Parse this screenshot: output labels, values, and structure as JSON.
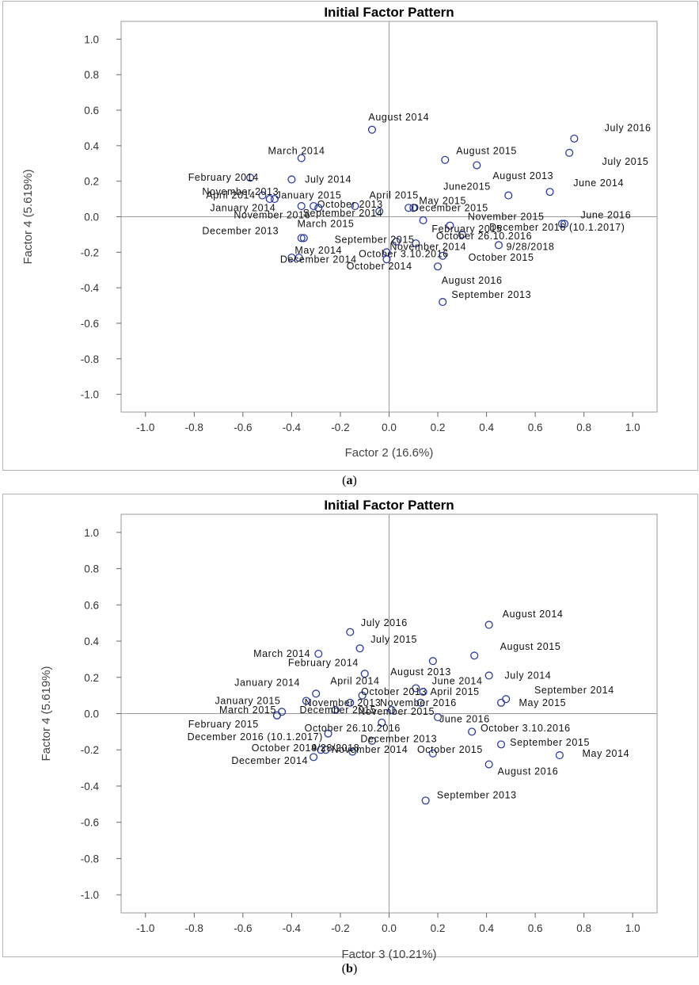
{
  "captions": [
    {
      "open": "(",
      "letter": "a",
      "close": ")"
    },
    {
      "open": "(",
      "letter": "b",
      "close": ")"
    }
  ],
  "chart_data": [
    {
      "type": "scatter",
      "title": "Initial Factor Pattern",
      "xlabel": "Factor 2 (16.6%)",
      "ylabel": "Factor 4 (5.619%)",
      "xlim": [
        -1.1,
        1.1
      ],
      "ylim": [
        -1.1,
        1.1
      ],
      "xticks": [
        "-1.0",
        "-0.8",
        "-0.6",
        "-0.4",
        "-0.2",
        "0.0",
        "0.2",
        "0.4",
        "0.6",
        "0.8",
        "1.0"
      ],
      "yticks": [
        "1.0",
        "0.8",
        "0.6",
        "0.4",
        "0.2",
        "0.0",
        "-0.2",
        "-0.4",
        "-0.6",
        "-0.8",
        "-1.0"
      ],
      "marker_color": "#2b3d9e",
      "points": [
        {
          "label": "August 2014",
          "x": -0.07,
          "y": 0.49,
          "lx": 0.04,
          "ly": 0.56
        },
        {
          "label": "July 2016",
          "x": 0.76,
          "y": 0.44,
          "lx": 0.98,
          "ly": 0.5
        },
        {
          "label": "March 2014",
          "x": -0.36,
          "y": 0.33,
          "lx": -0.38,
          "ly": 0.37
        },
        {
          "label": "August 2015",
          "x": 0.23,
          "y": 0.32,
          "lx": 0.4,
          "ly": 0.37
        },
        {
          "label": "July 2015",
          "x": 0.74,
          "y": 0.36,
          "lx": 0.97,
          "ly": 0.31
        },
        {
          "label": "August 2013",
          "x": 0.36,
          "y": 0.29,
          "lx": 0.55,
          "ly": 0.23
        },
        {
          "label": "February 2014",
          "x": -0.57,
          "y": 0.22,
          "lx": -0.68,
          "ly": 0.22
        },
        {
          "label": "July 2014",
          "x": -0.4,
          "y": 0.21,
          "lx": -0.25,
          "ly": 0.21
        },
        {
          "label": "June 2014",
          "x": 0.66,
          "y": 0.14,
          "lx": 0.86,
          "ly": 0.19
        },
        {
          "label": "June2015",
          "x": 0.49,
          "y": 0.12,
          "lx": 0.32,
          "ly": 0.17
        },
        {
          "label": "November 2013",
          "x": -0.52,
          "y": 0.12,
          "lx": -0.61,
          "ly": 0.14
        },
        {
          "label": "April 2014",
          "x": -0.49,
          "y": 0.1,
          "lx": -0.65,
          "ly": 0.12
        },
        {
          "label": "January 2015",
          "x": -0.47,
          "y": 0.1,
          "lx": -0.33,
          "ly": 0.12
        },
        {
          "label": "April 2015",
          "x": -0.14,
          "y": 0.06,
          "lx": 0.02,
          "ly": 0.12
        },
        {
          "label": "May 2015",
          "x": 0.1,
          "y": 0.05,
          "lx": 0.22,
          "ly": 0.09
        },
        {
          "label": "January 2014",
          "x": -0.36,
          "y": 0.06,
          "lx": -0.6,
          "ly": 0.05
        },
        {
          "label": "October 2013",
          "x": -0.31,
          "y": 0.06,
          "lx": -0.16,
          "ly": 0.07
        },
        {
          "label": "December 2015",
          "x": 0.08,
          "y": 0.05,
          "lx": 0.25,
          "ly": 0.05
        },
        {
          "label": "November 2016",
          "x": -0.29,
          "y": 0.05,
          "lx": -0.48,
          "ly": 0.01
        },
        {
          "label": "September 2014",
          "x": -0.04,
          "y": 0.03,
          "lx": -0.19,
          "ly": 0.02
        },
        {
          "label": "November 2015",
          "x": 0.14,
          "y": -0.02,
          "lx": 0.48,
          "ly": 0.0
        },
        {
          "label": "June 2016",
          "x": 0.71,
          "y": -0.04,
          "lx": 0.89,
          "ly": 0.01
        },
        {
          "label": "March 2015",
          "x": -0.36,
          "y": -0.12,
          "lx": -0.26,
          "ly": -0.04
        },
        {
          "label": "December 2013",
          "x": -0.35,
          "y": -0.12,
          "lx": -0.61,
          "ly": -0.08
        },
        {
          "label": "February 2015",
          "x": 0.25,
          "y": -0.05,
          "lx": 0.32,
          "ly": -0.07
        },
        {
          "label": "December 2016 (10.1.2017)",
          "x": 0.72,
          "y": -0.04,
          "lx": 0.69,
          "ly": -0.06
        },
        {
          "label": "October 26.10.2016",
          "x": 0.3,
          "y": -0.1,
          "lx": 0.39,
          "ly": -0.11
        },
        {
          "label": "September 2015",
          "x": 0.03,
          "y": -0.14,
          "lx": -0.06,
          "ly": -0.13
        },
        {
          "label": "November 2014",
          "x": 0.11,
          "y": -0.15,
          "lx": 0.16,
          "ly": -0.17
        },
        {
          "label": "9/28/2018",
          "x": 0.45,
          "y": -0.16,
          "lx": 0.58,
          "ly": -0.17
        },
        {
          "label": "May 2014",
          "x": -0.37,
          "y": -0.23,
          "lx": -0.29,
          "ly": -0.19
        },
        {
          "label": "October 3.10.2016",
          "x": -0.01,
          "y": -0.2,
          "lx": 0.06,
          "ly": -0.21
        },
        {
          "label": "October 2015",
          "x": 0.22,
          "y": -0.22,
          "lx": 0.46,
          "ly": -0.23
        },
        {
          "label": "December 2014",
          "x": -0.4,
          "y": -0.23,
          "lx": -0.29,
          "ly": -0.24
        },
        {
          "label": "October 2014",
          "x": -0.01,
          "y": -0.24,
          "lx": -0.04,
          "ly": -0.28
        },
        {
          "label": "August 2016",
          "x": 0.2,
          "y": -0.28,
          "lx": 0.34,
          "ly": -0.36
        },
        {
          "label": "September 2013",
          "x": 0.22,
          "y": -0.48,
          "lx": 0.42,
          "ly": -0.44
        }
      ]
    },
    {
      "type": "scatter",
      "title": "Initial Factor Pattern",
      "xlabel": "Factor 3 (10.21%)",
      "ylabel": "Factor 4 (5.619%)",
      "xlim": [
        -1.1,
        1.1
      ],
      "ylim": [
        -1.1,
        1.1
      ],
      "xticks": [
        "-1.0",
        "-0.8",
        "-0.6",
        "-0.4",
        "-0.2",
        "0.0",
        "0.2",
        "0.4",
        "0.6",
        "0.8",
        "1.0"
      ],
      "yticks": [
        "1.0",
        "0.8",
        "0.6",
        "0.4",
        "0.2",
        "0.0",
        "-0.2",
        "-0.4",
        "-0.6",
        "-0.8",
        "-1.0"
      ],
      "marker_color": "#2b3d9e",
      "points": [
        {
          "label": "August 2014",
          "x": 0.41,
          "y": 0.49,
          "lx": 0.59,
          "ly": 0.55
        },
        {
          "label": "July 2016",
          "x": -0.16,
          "y": 0.45,
          "lx": -0.02,
          "ly": 0.5
        },
        {
          "label": "July 2015",
          "x": -0.12,
          "y": 0.36,
          "lx": 0.02,
          "ly": 0.41
        },
        {
          "label": "March 2014",
          "x": -0.29,
          "y": 0.33,
          "lx": -0.44,
          "ly": 0.33
        },
        {
          "label": "August 2015",
          "x": 0.35,
          "y": 0.32,
          "lx": 0.58,
          "ly": 0.37
        },
        {
          "label": "February 2014",
          "x": -0.1,
          "y": 0.22,
          "lx": -0.27,
          "ly": 0.28
        },
        {
          "label": "August 2013",
          "x": 0.18,
          "y": 0.29,
          "lx": 0.13,
          "ly": 0.23
        },
        {
          "label": "July 2014",
          "x": 0.41,
          "y": 0.21,
          "lx": 0.57,
          "ly": 0.21
        },
        {
          "label": "April 2014",
          "x": -0.3,
          "y": 0.11,
          "lx": -0.14,
          "ly": 0.18
        },
        {
          "label": "June 2014",
          "x": 0.11,
          "y": 0.14,
          "lx": 0.28,
          "ly": 0.18
        },
        {
          "label": "January 2014",
          "x": -0.34,
          "y": 0.07,
          "lx": -0.5,
          "ly": 0.17
        },
        {
          "label": "October 2013",
          "x": -0.11,
          "y": 0.1,
          "lx": 0.02,
          "ly": 0.12
        },
        {
          "label": "April 2015",
          "x": 0.14,
          "y": 0.12,
          "lx": 0.27,
          "ly": 0.12
        },
        {
          "label": "September 2014",
          "x": 0.48,
          "y": 0.08,
          "lx": 0.76,
          "ly": 0.13
        },
        {
          "label": "January 2015",
          "x": -0.44,
          "y": 0.01,
          "lx": -0.58,
          "ly": 0.07
        },
        {
          "label": "November 2013",
          "x": -0.16,
          "y": 0.06,
          "lx": -0.19,
          "ly": 0.06
        },
        {
          "label": "November 2016",
          "x": 0.13,
          "y": 0.06,
          "lx": 0.12,
          "ly": 0.06
        },
        {
          "label": "May 2015",
          "x": 0.46,
          "y": 0.06,
          "lx": 0.63,
          "ly": 0.06
        },
        {
          "label": "March 2015",
          "x": -0.46,
          "y": -0.01,
          "lx": -0.58,
          "ly": 0.02
        },
        {
          "label": "December 2015",
          "x": -0.22,
          "y": 0.02,
          "lx": -0.21,
          "ly": 0.02
        },
        {
          "label": "November 2015",
          "x": 0.01,
          "y": 0.02,
          "lx": 0.03,
          "ly": 0.01
        },
        {
          "label": "June 2016",
          "x": 0.2,
          "y": -0.02,
          "lx": 0.31,
          "ly": -0.03
        },
        {
          "label": "February 2015",
          "x": -0.46,
          "y": -0.01,
          "lx": -0.68,
          "ly": -0.06
        },
        {
          "label": "October 26.10.2016",
          "x": -0.03,
          "y": -0.05,
          "lx": -0.15,
          "ly": -0.08
        },
        {
          "label": "October 3.10.2016",
          "x": 0.34,
          "y": -0.1,
          "lx": 0.56,
          "ly": -0.08
        },
        {
          "label": "December 2016 (10.1.2017)",
          "x": -0.25,
          "y": -0.11,
          "lx": -0.55,
          "ly": -0.13
        },
        {
          "label": "December 2013",
          "x": -0.07,
          "y": -0.15,
          "lx": 0.04,
          "ly": -0.14
        },
        {
          "label": "September 2015",
          "x": 0.46,
          "y": -0.17,
          "lx": 0.66,
          "ly": -0.16
        },
        {
          "label": "October 2014",
          "x": -0.28,
          "y": -0.2,
          "lx": -0.43,
          "ly": -0.19
        },
        {
          "label": "9/28/2018",
          "x": -0.26,
          "y": -0.2,
          "lx": -0.22,
          "ly": -0.19
        },
        {
          "label": "November 2014",
          "x": -0.15,
          "y": -0.21,
          "lx": -0.08,
          "ly": -0.2
        },
        {
          "label": "October 2015",
          "x": 0.18,
          "y": -0.22,
          "lx": 0.25,
          "ly": -0.2
        },
        {
          "label": "May 2014",
          "x": 0.7,
          "y": -0.23,
          "lx": 0.89,
          "ly": -0.22
        },
        {
          "label": "December 2014",
          "x": -0.31,
          "y": -0.24,
          "lx": -0.49,
          "ly": -0.26
        },
        {
          "label": "August 2016",
          "x": 0.41,
          "y": -0.28,
          "lx": 0.57,
          "ly": -0.32
        },
        {
          "label": "September 2013",
          "x": 0.15,
          "y": -0.48,
          "lx": 0.36,
          "ly": -0.45
        }
      ]
    }
  ]
}
